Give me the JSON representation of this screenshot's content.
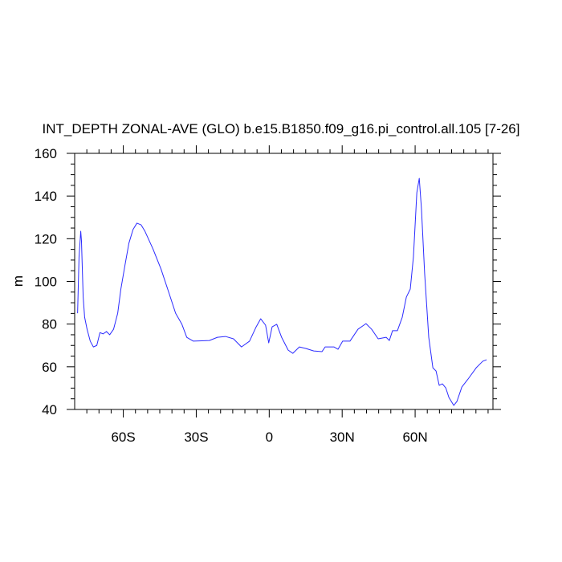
{
  "chart_data": {
    "type": "line",
    "title": "INT_DEPTH ZONAL-AVE (GLO) b.e15.B1850.f09_g16.pi_control.all.105 [7-26]",
    "y_label": "m",
    "x": [
      -78.8,
      -78.2,
      -77.5,
      -77.2,
      -76.5,
      -75.9,
      -74.9,
      -73.6,
      -72.3,
      -70.9,
      -69.6,
      -68.3,
      -66.9,
      -65.6,
      -64,
      -62.3,
      -61,
      -59.3,
      -57.7,
      -56,
      -54.4,
      -52.7,
      -51.1,
      -47.8,
      -44.5,
      -41.2,
      -38.5,
      -35.9,
      -33.9,
      -31.2,
      -24.6,
      -21.3,
      -18,
      -14.7,
      -11.4,
      -8.1,
      -5.5,
      -3.5,
      -1.5,
      -0.2,
      1.2,
      3.1,
      5.1,
      7.8,
      9.7,
      12.4,
      15,
      18.3,
      21.7,
      23,
      26.6,
      28.3,
      30.2,
      33.2,
      36.5,
      39.8,
      42.1,
      44.8,
      48.1,
      49.4,
      50.7,
      52.7,
      54.7,
      56.4,
      58,
      59.3,
      60.7,
      61.7,
      62.6,
      63.9,
      65.6,
      67.3,
      68.6,
      69.9,
      71.2,
      72.6,
      73.9,
      75.9,
      77.2,
      79.2,
      81.8,
      85.1,
      87.8,
      89.4
    ],
    "series": [
      {
        "color": "#2b2bff",
        "values": [
          85.1,
          111.5,
          123.5,
          119,
          92.7,
          83.2,
          77.6,
          72,
          69.3,
          70,
          76,
          75.4,
          76.5,
          75,
          77.6,
          85.1,
          96.4,
          107.7,
          117.9,
          124.3,
          127.3,
          126.5,
          123.5,
          115.2,
          105.8,
          94.5,
          85.1,
          79.9,
          73.8,
          72,
          72.3,
          73.8,
          74.2,
          73.1,
          69.3,
          72,
          78.4,
          82.5,
          79.5,
          71.2,
          78.7,
          79.9,
          73.8,
          67.8,
          66.3,
          69.3,
          68.6,
          67.4,
          67.1,
          69.3,
          69.3,
          68.2,
          72,
          72,
          77.6,
          80.2,
          77.6,
          73.1,
          73.8,
          72.3,
          76.9,
          76.9,
          83.2,
          92.7,
          96.4,
          111.5,
          141.6,
          148.3,
          134,
          103.9,
          73.8,
          59.5,
          58,
          51.3,
          52,
          50.1,
          45.6,
          41.9,
          43.8,
          50.5,
          54.3,
          59.5,
          62.6,
          63.3
        ]
      }
    ],
    "xlim": [
      -80,
      92
    ],
    "ylim": [
      40,
      160
    ],
    "xticks": [
      {
        "value": -60,
        "label": "60S"
      },
      {
        "value": -30,
        "label": "30S"
      },
      0,
      {
        "value": 30,
        "label": "30N"
      },
      {
        "value": 60,
        "label": "60N"
      }
    ],
    "yticks": [
      40,
      60,
      80,
      100,
      120,
      140,
      160
    ],
    "xminorticks": [
      -75,
      -70,
      -65,
      -55,
      -50,
      -45,
      -40,
      -35,
      -25,
      -20,
      -15,
      -10,
      -5,
      5,
      10,
      15,
      20,
      25,
      35,
      40,
      45,
      50,
      55,
      65,
      70,
      75,
      80,
      85,
      90
    ],
    "yminorticks": [
      45,
      50,
      55,
      65,
      70,
      75,
      85,
      90,
      95,
      105,
      110,
      115,
      125,
      130,
      135,
      145,
      150,
      155
    ]
  }
}
